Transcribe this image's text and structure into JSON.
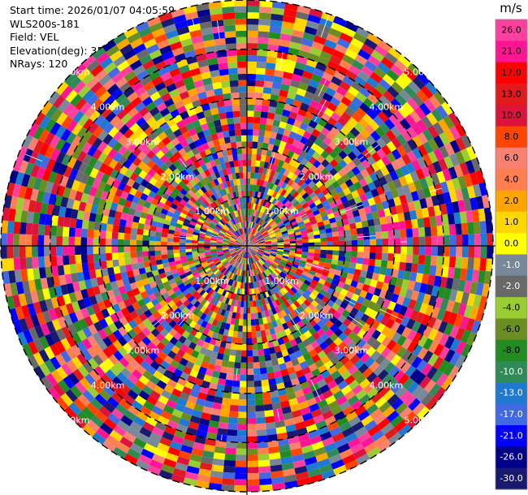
{
  "header": {
    "start_time": "Start time: 2026/01/07 04:05:59",
    "instrument": "WLS200s-181",
    "field": "Field: VEL",
    "elevation": "Elevation(deg): 35.00",
    "nrays": "NRays: 120"
  },
  "chart_data": {
    "type": "heatmap",
    "projection": "polar (PPI scan)",
    "field": "VEL",
    "units": "m/s",
    "n_rays": 120,
    "max_range_km": 5.0,
    "range_ring_labels": [
      "1.00km",
      "2.00km",
      "3.00km",
      "4.00km",
      "5.00km"
    ],
    "colorbar": {
      "title": "m/s",
      "tick_labels": [
        "26.0",
        "21.0",
        "17.0",
        "13.0",
        "10.0",
        "8.0",
        "6.0",
        "4.0",
        "2.0",
        "1.0",
        "0.0",
        "-1.0",
        "-2.0",
        "-4.0",
        "-6.0",
        "-8.0",
        "-10.0",
        "-13.0",
        "-17.0",
        "-21.0",
        "-26.0",
        "-30.0"
      ],
      "colors": [
        "#ff3fa0",
        "#ff1493",
        "#ff0000",
        "#e31a1c",
        "#dc143c",
        "#ff4500",
        "#fa8072",
        "#ff7f50",
        "#ffa500",
        "#ffd700",
        "#ffff00",
        "#778899",
        "#696969",
        "#9acd32",
        "#6b8e23",
        "#228b22",
        "#2e8b57",
        "#1e7ad0",
        "#4169e1",
        "#0000ff",
        "#00008b",
        "#191970"
      ]
    },
    "values_note": "noise-dominated velocity field; individual gate values not readable"
  }
}
